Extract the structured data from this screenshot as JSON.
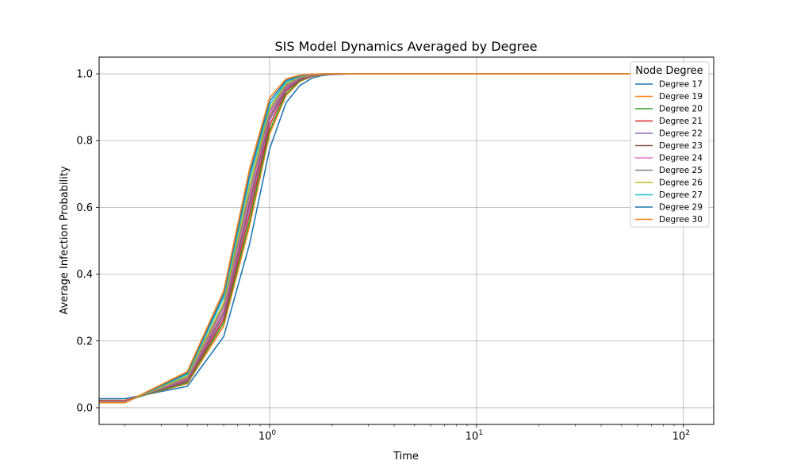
{
  "chart_data": {
    "type": "line",
    "title": "SIS Model Dynamics Averaged by Degree",
    "xlabel": "Time",
    "ylabel": "Average Infection Probability",
    "xscale": "log",
    "xlim": [
      0.15,
      140
    ],
    "ylim": [
      -0.05,
      1.05
    ],
    "x_ticks": [
      1,
      10,
      100
    ],
    "x_tick_labels": [
      {
        "base": "10",
        "exp": "0"
      },
      {
        "base": "10",
        "exp": "1"
      },
      {
        "base": "10",
        "exp": "2"
      }
    ],
    "y_ticks": [
      0.0,
      0.2,
      0.4,
      0.6,
      0.8,
      1.0
    ],
    "y_tick_labels": [
      "0.0",
      "0.2",
      "0.4",
      "0.6",
      "0.8",
      "1.0"
    ],
    "grid": true,
    "legend": {
      "title": "Node Degree",
      "position": "top-right"
    },
    "x": [
      0.1,
      0.2,
      0.4,
      0.6,
      0.8,
      1.0,
      1.2,
      1.4,
      1.6,
      1.8,
      2.0,
      2.5,
      3.0,
      5.0,
      10,
      20,
      50,
      100
    ],
    "series": [
      {
        "name": "Degree 17",
        "color": "#1f77b4",
        "values": [
          0.027,
          0.027,
          0.064,
          0.213,
          0.49,
          0.775,
          0.913,
          0.965,
          0.987,
          0.995,
          0.998,
          1.0,
          1.0,
          1.0,
          1.0,
          1.0,
          1.0,
          1.0
        ]
      },
      {
        "name": "Degree 19",
        "color": "#ff7f0e",
        "values": [
          0.022,
          0.022,
          0.072,
          0.245,
          0.545,
          0.82,
          0.935,
          0.977,
          0.992,
          0.997,
          0.999,
          1.0,
          1.0,
          1.0,
          1.0,
          1.0,
          1.0,
          1.0
        ]
      },
      {
        "name": "Degree 20",
        "color": "#2ca02c",
        "values": [
          0.02,
          0.02,
          0.075,
          0.255,
          0.56,
          0.83,
          0.94,
          0.979,
          0.993,
          0.998,
          0.999,
          1.0,
          1.0,
          1.0,
          1.0,
          1.0,
          1.0,
          1.0
        ]
      },
      {
        "name": "Degree 21",
        "color": "#d62728",
        "values": [
          0.021,
          0.021,
          0.079,
          0.265,
          0.58,
          0.845,
          0.948,
          0.982,
          0.994,
          0.998,
          0.999,
          1.0,
          1.0,
          1.0,
          1.0,
          1.0,
          1.0,
          1.0
        ]
      },
      {
        "name": "Degree 22",
        "color": "#9467bd",
        "values": [
          0.019,
          0.019,
          0.082,
          0.275,
          0.6,
          0.86,
          0.953,
          0.984,
          0.995,
          0.998,
          0.999,
          1.0,
          1.0,
          1.0,
          1.0,
          1.0,
          1.0,
          1.0
        ]
      },
      {
        "name": "Degree 23",
        "color": "#8c564b",
        "values": [
          0.018,
          0.018,
          0.085,
          0.285,
          0.615,
          0.87,
          0.958,
          0.986,
          0.996,
          0.999,
          1.0,
          1.0,
          1.0,
          1.0,
          1.0,
          1.0,
          1.0,
          1.0
        ]
      },
      {
        "name": "Degree 24",
        "color": "#e377c2",
        "values": [
          0.018,
          0.018,
          0.088,
          0.295,
          0.63,
          0.88,
          0.962,
          0.988,
          0.996,
          0.999,
          1.0,
          1.0,
          1.0,
          1.0,
          1.0,
          1.0,
          1.0,
          1.0
        ]
      },
      {
        "name": "Degree 25",
        "color": "#7f7f7f",
        "values": [
          0.017,
          0.017,
          0.091,
          0.305,
          0.645,
          0.888,
          0.966,
          0.989,
          0.997,
          0.999,
          1.0,
          1.0,
          1.0,
          1.0,
          1.0,
          1.0,
          1.0,
          1.0
        ]
      },
      {
        "name": "Degree 26",
        "color": "#bcbd22",
        "values": [
          0.016,
          0.016,
          0.095,
          0.315,
          0.665,
          0.897,
          0.97,
          0.991,
          0.997,
          0.999,
          1.0,
          1.0,
          1.0,
          1.0,
          1.0,
          1.0,
          1.0,
          1.0
        ]
      },
      {
        "name": "Degree 27",
        "color": "#17becf",
        "values": [
          0.016,
          0.016,
          0.1,
          0.33,
          0.685,
          0.907,
          0.975,
          0.993,
          0.998,
          1.0,
          1.0,
          1.0,
          1.0,
          1.0,
          1.0,
          1.0,
          1.0,
          1.0
        ]
      },
      {
        "name": "Degree 29",
        "color": "#1f77b4",
        "values": [
          0.015,
          0.015,
          0.104,
          0.34,
          0.7,
          0.918,
          0.98,
          0.994,
          0.998,
          1.0,
          1.0,
          1.0,
          1.0,
          1.0,
          1.0,
          1.0,
          1.0,
          1.0
        ]
      },
      {
        "name": "Degree 30",
        "color": "#ff7f0e",
        "values": [
          0.015,
          0.015,
          0.108,
          0.35,
          0.715,
          0.928,
          0.985,
          0.996,
          0.999,
          1.0,
          1.0,
          1.0,
          1.0,
          1.0,
          1.0,
          1.0,
          1.0,
          1.0
        ]
      }
    ]
  }
}
